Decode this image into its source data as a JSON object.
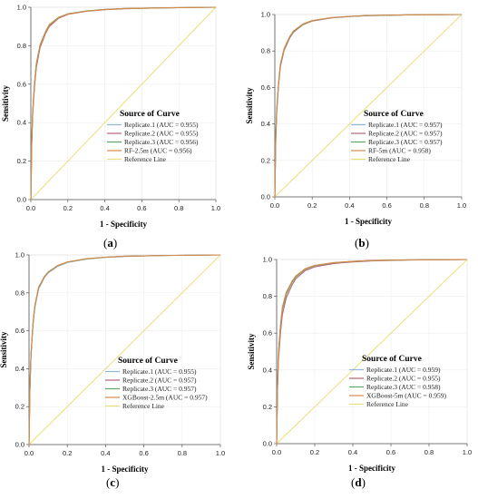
{
  "chart_data": [
    {
      "type": "line",
      "panel": "a",
      "caption": {
        "open": "(",
        "letter": "a",
        "close": ")"
      },
      "xlabel": "1 - Specificity",
      "ylabel": "Sensitivity",
      "xlim": [
        0,
        1
      ],
      "ylim": [
        0,
        1
      ],
      "xticks": [
        "0.0",
        "0.2",
        "0.4",
        "0.6",
        "0.8",
        "1.0"
      ],
      "yticks": [
        "0.0",
        "0.2",
        "0.4",
        "0.6",
        "0.8",
        "1.0"
      ],
      "legend": {
        "title": "Source of Curve",
        "placement": "center-right"
      },
      "series": [
        {
          "name": "Replicate.1 (AUC = 0.955)",
          "color": "#8fb7d9",
          "x": [
            0,
            0.005,
            0.01,
            0.02,
            0.03,
            0.05,
            0.08,
            0.1,
            0.15,
            0.2,
            0.3,
            0.4,
            0.5,
            0.7,
            1.0
          ],
          "y": [
            0,
            0.3,
            0.45,
            0.6,
            0.7,
            0.8,
            0.87,
            0.905,
            0.945,
            0.965,
            0.98,
            0.988,
            0.993,
            0.997,
            1.0
          ]
        },
        {
          "name": "Replicate.2 (AUC = 0.955)",
          "color": "#b56576",
          "x": [
            0,
            0.005,
            0.01,
            0.02,
            0.03,
            0.05,
            0.08,
            0.1,
            0.15,
            0.2,
            0.3,
            0.4,
            0.5,
            0.7,
            1.0
          ],
          "y": [
            0,
            0.29,
            0.44,
            0.59,
            0.69,
            0.79,
            0.865,
            0.9,
            0.943,
            0.963,
            0.979,
            0.987,
            0.992,
            0.997,
            1.0
          ]
        },
        {
          "name": "Replicate.3 (AUC = 0.956)",
          "color": "#5aa864",
          "x": [
            0,
            0.005,
            0.01,
            0.02,
            0.03,
            0.05,
            0.08,
            0.1,
            0.15,
            0.2,
            0.3,
            0.4,
            0.5,
            0.7,
            1.0
          ],
          "y": [
            0,
            0.31,
            0.46,
            0.61,
            0.71,
            0.805,
            0.875,
            0.91,
            0.948,
            0.966,
            0.981,
            0.989,
            0.993,
            0.997,
            1.0
          ]
        },
        {
          "name": "RF-2.5m (AUC = 0.956)",
          "color": "#d9894a",
          "x": [
            0,
            0.005,
            0.01,
            0.02,
            0.03,
            0.05,
            0.08,
            0.1,
            0.15,
            0.2,
            0.3,
            0.4,
            0.5,
            0.7,
            1.0
          ],
          "y": [
            0,
            0.3,
            0.455,
            0.605,
            0.705,
            0.8,
            0.872,
            0.907,
            0.946,
            0.965,
            0.98,
            0.988,
            0.993,
            0.997,
            1.0
          ]
        },
        {
          "name": "Reference Line",
          "color": "#e8e07a",
          "x": [
            0,
            1
          ],
          "y": [
            0,
            1
          ]
        }
      ]
    },
    {
      "type": "line",
      "panel": "b",
      "caption": {
        "open": "(",
        "letter": "b",
        "close": ")"
      },
      "xlabel": "1 - Specificity",
      "ylabel": "Sensitivity",
      "xlim": [
        0,
        1
      ],
      "ylim": [
        0,
        1
      ],
      "xticks": [
        "0.0",
        "0.2",
        "0.4",
        "0.6",
        "0.8",
        "1.0"
      ],
      "yticks": [
        "0.0",
        "0.2",
        "0.4",
        "0.6",
        "0.8",
        "1.0"
      ],
      "legend": {
        "title": "Source of Curve",
        "placement": "center-right"
      },
      "series": [
        {
          "name": "Replicate.1 (AUC = 0.957)",
          "color": "#8fb7d9",
          "x": [
            0,
            0.005,
            0.01,
            0.02,
            0.03,
            0.05,
            0.08,
            0.1,
            0.15,
            0.2,
            0.3,
            0.4,
            0.5,
            0.7,
            1.0
          ],
          "y": [
            0,
            0.32,
            0.47,
            0.62,
            0.72,
            0.81,
            0.875,
            0.905,
            0.945,
            0.965,
            0.982,
            0.989,
            0.994,
            0.998,
            1.0
          ]
        },
        {
          "name": "Replicate.2 (AUC = 0.957)",
          "color": "#b56576",
          "x": [
            0,
            0.005,
            0.01,
            0.02,
            0.03,
            0.05,
            0.08,
            0.1,
            0.15,
            0.2,
            0.3,
            0.4,
            0.5,
            0.7,
            1.0
          ],
          "y": [
            0,
            0.31,
            0.46,
            0.615,
            0.715,
            0.805,
            0.872,
            0.903,
            0.944,
            0.964,
            0.981,
            0.989,
            0.994,
            0.998,
            1.0
          ]
        },
        {
          "name": "Replicate.3 (AUC = 0.957)",
          "color": "#5aa864",
          "x": [
            0,
            0.005,
            0.01,
            0.02,
            0.03,
            0.05,
            0.08,
            0.1,
            0.15,
            0.2,
            0.3,
            0.4,
            0.5,
            0.7,
            1.0
          ],
          "y": [
            0,
            0.325,
            0.475,
            0.625,
            0.725,
            0.812,
            0.877,
            0.907,
            0.946,
            0.966,
            0.982,
            0.99,
            0.994,
            0.998,
            1.0
          ]
        },
        {
          "name": "RF-5m (AUC = 0.958)",
          "color": "#d9894a",
          "x": [
            0,
            0.005,
            0.01,
            0.02,
            0.03,
            0.05,
            0.08,
            0.1,
            0.15,
            0.2,
            0.3,
            0.4,
            0.5,
            0.7,
            1.0
          ],
          "y": [
            0,
            0.33,
            0.48,
            0.63,
            0.73,
            0.815,
            0.88,
            0.91,
            0.948,
            0.967,
            0.983,
            0.99,
            0.995,
            0.998,
            1.0
          ]
        },
        {
          "name": "Reference Line",
          "color": "#e8e07a",
          "x": [
            0,
            1
          ],
          "y": [
            0,
            1
          ]
        }
      ]
    },
    {
      "type": "line",
      "panel": "c",
      "caption": {
        "open": "(",
        "letter": "c",
        "close": ")"
      },
      "xlabel": "1 - Specificity",
      "ylabel": "Sensitivity",
      "xlim": [
        0,
        1
      ],
      "ylim": [
        0,
        1
      ],
      "xticks": [
        "0.0",
        "0.2",
        "0.4",
        "0.6",
        "0.8",
        "1.0"
      ],
      "yticks": [
        "0.0",
        "0.2",
        "0.4",
        "0.6",
        "0.8",
        "1.0"
      ],
      "legend": {
        "title": "Source of Curve",
        "placement": "center-right"
      },
      "series": [
        {
          "name": "Replicate.1 (AUC = 0.955)",
          "color": "#8fb7d9",
          "x": [
            0,
            0.005,
            0.01,
            0.02,
            0.03,
            0.05,
            0.08,
            0.1,
            0.15,
            0.2,
            0.3,
            0.4,
            0.5,
            0.7,
            1.0
          ],
          "y": [
            0,
            0.3,
            0.46,
            0.62,
            0.72,
            0.82,
            0.88,
            0.905,
            0.94,
            0.96,
            0.978,
            0.987,
            0.992,
            0.997,
            1.0
          ]
        },
        {
          "name": "Replicate.2 (AUC = 0.957)",
          "color": "#b56576",
          "x": [
            0,
            0.005,
            0.01,
            0.02,
            0.03,
            0.05,
            0.08,
            0.1,
            0.15,
            0.2,
            0.3,
            0.4,
            0.5,
            0.7,
            1.0
          ],
          "y": [
            0,
            0.31,
            0.47,
            0.63,
            0.73,
            0.83,
            0.885,
            0.91,
            0.944,
            0.963,
            0.98,
            0.988,
            0.993,
            0.997,
            1.0
          ]
        },
        {
          "name": "Replicate.3 (AUC = 0.957)",
          "color": "#5aa864",
          "x": [
            0,
            0.005,
            0.01,
            0.02,
            0.03,
            0.05,
            0.08,
            0.1,
            0.15,
            0.2,
            0.3,
            0.4,
            0.5,
            0.7,
            1.0
          ],
          "y": [
            0,
            0.305,
            0.465,
            0.625,
            0.725,
            0.825,
            0.883,
            0.908,
            0.943,
            0.962,
            0.979,
            0.988,
            0.993,
            0.997,
            1.0
          ]
        },
        {
          "name": "XGBoost-2.5m (AUC = 0.957)",
          "color": "#d9894a",
          "x": [
            0,
            0.005,
            0.01,
            0.02,
            0.03,
            0.05,
            0.08,
            0.1,
            0.15,
            0.2,
            0.3,
            0.4,
            0.5,
            0.7,
            1.0
          ],
          "y": [
            0,
            0.31,
            0.47,
            0.63,
            0.73,
            0.828,
            0.885,
            0.91,
            0.944,
            0.963,
            0.98,
            0.988,
            0.993,
            0.997,
            1.0
          ]
        },
        {
          "name": "Reference Line",
          "color": "#e8e07a",
          "x": [
            0,
            1
          ],
          "y": [
            0,
            1
          ]
        }
      ]
    },
    {
      "type": "line",
      "panel": "d",
      "caption": {
        "open": "(",
        "letter": "d",
        "close": ")"
      },
      "xlabel": "1 - Specificity",
      "ylabel": "Sensitivity",
      "xlim": [
        0,
        1
      ],
      "ylim": [
        0,
        1
      ],
      "xticks": [
        "0.0",
        "0.2",
        "0.4",
        "0.6",
        "0.8",
        "1.0"
      ],
      "yticks": [
        "0.0",
        "0.2",
        "0.4",
        "0.6",
        "0.8",
        "1.0"
      ],
      "legend": {
        "title": "Source of Curve",
        "placement": "center-right"
      },
      "series": [
        {
          "name": "Replicate.1 (AUC = 0.959)",
          "color": "#8fb7d9",
          "x": [
            0,
            0.005,
            0.01,
            0.02,
            0.03,
            0.05,
            0.08,
            0.1,
            0.15,
            0.2,
            0.3,
            0.4,
            0.5,
            0.7,
            1.0
          ],
          "y": [
            0,
            0.34,
            0.5,
            0.64,
            0.74,
            0.82,
            0.88,
            0.91,
            0.95,
            0.968,
            0.983,
            0.99,
            0.995,
            0.998,
            1.0
          ]
        },
        {
          "name": "Replicate.2 (AUC = 0.955)",
          "color": "#b56576",
          "x": [
            0,
            0.005,
            0.01,
            0.02,
            0.03,
            0.05,
            0.08,
            0.1,
            0.15,
            0.2,
            0.3,
            0.4,
            0.5,
            0.7,
            1.0
          ],
          "y": [
            0,
            0.31,
            0.46,
            0.6,
            0.7,
            0.79,
            0.86,
            0.895,
            0.94,
            0.96,
            0.978,
            0.987,
            0.992,
            0.997,
            1.0
          ]
        },
        {
          "name": "Replicate.3 (AUC = 0.958)",
          "color": "#5aa864",
          "x": [
            0,
            0.005,
            0.01,
            0.02,
            0.03,
            0.05,
            0.08,
            0.1,
            0.15,
            0.2,
            0.3,
            0.4,
            0.5,
            0.7,
            1.0
          ],
          "y": [
            0,
            0.33,
            0.49,
            0.63,
            0.73,
            0.81,
            0.875,
            0.905,
            0.947,
            0.966,
            0.982,
            0.99,
            0.994,
            0.998,
            1.0
          ]
        },
        {
          "name": "XGBoost-5m (AUC = 0.959)",
          "color": "#d9894a",
          "x": [
            0,
            0.005,
            0.01,
            0.02,
            0.03,
            0.05,
            0.08,
            0.1,
            0.15,
            0.2,
            0.3,
            0.4,
            0.5,
            0.7,
            1.0
          ],
          "y": [
            0,
            0.34,
            0.5,
            0.64,
            0.74,
            0.82,
            0.88,
            0.91,
            0.95,
            0.968,
            0.983,
            0.99,
            0.995,
            0.998,
            1.0
          ]
        },
        {
          "name": "Reference Line",
          "color": "#e8e07a",
          "x": [
            0,
            1
          ],
          "y": [
            0,
            1
          ]
        }
      ]
    }
  ]
}
